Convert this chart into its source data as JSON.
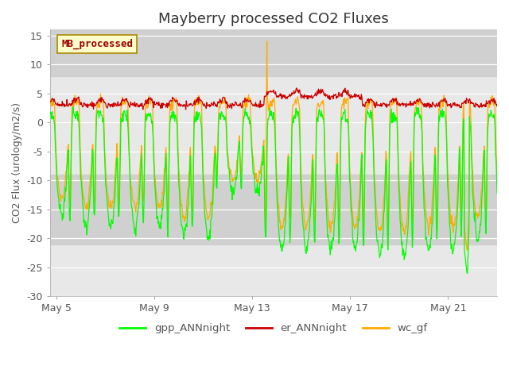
{
  "title": "Mayberry processed CO2 Fluxes",
  "ylabel": "CO2 Flux (urology/m2/s)",
  "ylim": [
    -30,
    16
  ],
  "yticks": [
    -30,
    -25,
    -20,
    -15,
    -10,
    -5,
    0,
    5,
    10,
    15
  ],
  "xtick_labels": [
    "May 5",
    "May 9",
    "May 13",
    "May 17",
    "May 21"
  ],
  "xtick_days": [
    5,
    9,
    13,
    17,
    21
  ],
  "legend_labels": [
    "gpp_ANNnight",
    "er_ANNnight",
    "wc_gf"
  ],
  "line_colors": [
    "#00ff00",
    "#cc0000",
    "#ffaa00"
  ],
  "inset_label": "MB_processed",
  "inset_bg": "#ffffcc",
  "inset_border": "#aa8800",
  "inset_text_color": "#990000",
  "plot_bg": "#e8e8e8",
  "band1_y1": 8,
  "band1_y2": 16,
  "band2_y1": -21,
  "band2_y2": -9,
  "band_color": "#d0d0d0",
  "title_fontsize": 13,
  "axis_fontsize": 9,
  "tick_fontsize": 9
}
